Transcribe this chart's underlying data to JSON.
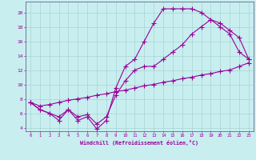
{
  "title": "Windchill (Refroidissement éolien,°C)",
  "background_color": "#c8eef0",
  "grid_color": "#a0cccc",
  "line_color": "#990099",
  "xlim": [
    -0.5,
    23.5
  ],
  "ylim": [
    3.5,
    21.5
  ],
  "xticks": [
    0,
    1,
    2,
    3,
    4,
    5,
    6,
    7,
    8,
    9,
    10,
    11,
    12,
    13,
    14,
    15,
    16,
    17,
    18,
    19,
    20,
    21,
    22,
    23
  ],
  "yticks": [
    4,
    6,
    8,
    10,
    12,
    14,
    16,
    18,
    20
  ],
  "curve1_x": [
    0,
    1,
    2,
    3,
    4,
    5,
    6,
    7,
    8,
    9,
    10,
    11,
    12,
    13,
    14,
    15,
    16,
    17,
    18,
    19,
    20,
    21,
    22,
    23
  ],
  "curve1_y": [
    7.5,
    6.5,
    6.0,
    5.0,
    6.5,
    5.0,
    5.5,
    3.8,
    5.0,
    9.5,
    12.5,
    13.5,
    16.0,
    18.5,
    20.5,
    20.5,
    20.5,
    20.5,
    20.0,
    19.0,
    18.0,
    17.0,
    14.5,
    13.5
  ],
  "curve2_x": [
    0,
    1,
    2,
    3,
    4,
    5,
    6,
    7,
    8,
    9,
    10,
    11,
    12,
    13,
    14,
    15,
    16,
    17,
    18,
    19,
    20,
    21,
    22,
    23
  ],
  "curve2_y": [
    7.5,
    6.5,
    6.0,
    5.5,
    6.5,
    5.5,
    5.8,
    4.5,
    5.5,
    8.5,
    10.5,
    12.0,
    12.5,
    12.5,
    13.5,
    14.5,
    15.5,
    17.0,
    18.0,
    19.0,
    18.5,
    17.5,
    16.5,
    13.5
  ],
  "curve3_x": [
    0,
    1,
    2,
    3,
    4,
    5,
    6,
    7,
    8,
    9,
    10,
    11,
    12,
    13,
    14,
    15,
    16,
    17,
    18,
    19,
    20,
    21,
    22,
    23
  ],
  "curve3_y": [
    7.5,
    7.0,
    7.2,
    7.5,
    7.8,
    8.0,
    8.2,
    8.5,
    8.7,
    9.0,
    9.2,
    9.5,
    9.8,
    10.0,
    10.3,
    10.5,
    10.8,
    11.0,
    11.3,
    11.5,
    11.8,
    12.0,
    12.5,
    13.0
  ]
}
